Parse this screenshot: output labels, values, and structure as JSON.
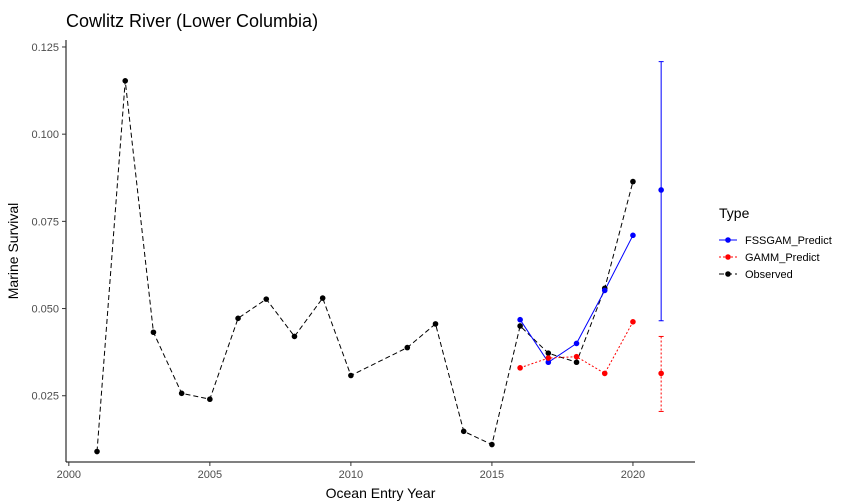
{
  "chart_data": {
    "type": "line",
    "title": "Cowlitz River (Lower Columbia)",
    "xlabel": "Ocean Entry Year",
    "ylabel": "Marine Survival",
    "xlim": [
      1999.9,
      2022.2
    ],
    "ylim": [
      0.006,
      0.127
    ],
    "x_ticks": [
      2000,
      2005,
      2010,
      2015,
      2020
    ],
    "x_tick_labels": [
      "2000",
      "2005",
      "2010",
      "2015",
      "2020"
    ],
    "y_ticks": [
      0.025,
      0.05,
      0.075,
      0.1,
      0.125
    ],
    "y_tick_labels": [
      "0.025",
      "0.050",
      "0.075",
      "0.100",
      "0.125"
    ],
    "grid": false,
    "legend": {
      "title": "Type",
      "position": "right",
      "entries": [
        "FSSGAM_Predict",
        "GAMM_Predict",
        "Observed"
      ]
    },
    "series": [
      {
        "name": "Observed",
        "color": "#000000",
        "line_style": "dashed",
        "x": [
          2001,
          2002,
          2003,
          2004,
          2005,
          2006,
          2007,
          2008,
          2009,
          2010,
          2012,
          2013,
          2014,
          2015,
          2016,
          2017,
          2018,
          2019,
          2020
        ],
        "y": [
          0.009,
          0.1153,
          0.0432,
          0.0257,
          0.024,
          0.0472,
          0.0527,
          0.042,
          0.053,
          0.0308,
          0.0388,
          0.0456,
          0.0148,
          0.011,
          0.045,
          0.0372,
          0.0346,
          0.0558,
          0.0864
        ]
      },
      {
        "name": "FSSGAM_Predict",
        "color": "#0000ff",
        "line_style": "solid",
        "x": [
          2016,
          2017,
          2018,
          2019,
          2020
        ],
        "y": [
          0.0468,
          0.0346,
          0.04,
          0.0552,
          0.071
        ]
      },
      {
        "name": "GAMM_Predict",
        "color": "#ff0000",
        "line_style": "dotted",
        "x": [
          2016,
          2017,
          2018,
          2019,
          2020
        ],
        "y": [
          0.033,
          0.0358,
          0.0362,
          0.0314,
          0.0462
        ]
      }
    ],
    "error_bars": [
      {
        "series": "FSSGAM_Predict",
        "color": "#0000ff",
        "line_style": "solid",
        "x": 2021,
        "y": 0.084,
        "lower": 0.0465,
        "upper": 0.1208
      },
      {
        "series": "GAMM_Predict",
        "color": "#ff0000",
        "line_style": "dotted",
        "x": 2021,
        "y": 0.0314,
        "lower": 0.0205,
        "upper": 0.042
      }
    ]
  }
}
